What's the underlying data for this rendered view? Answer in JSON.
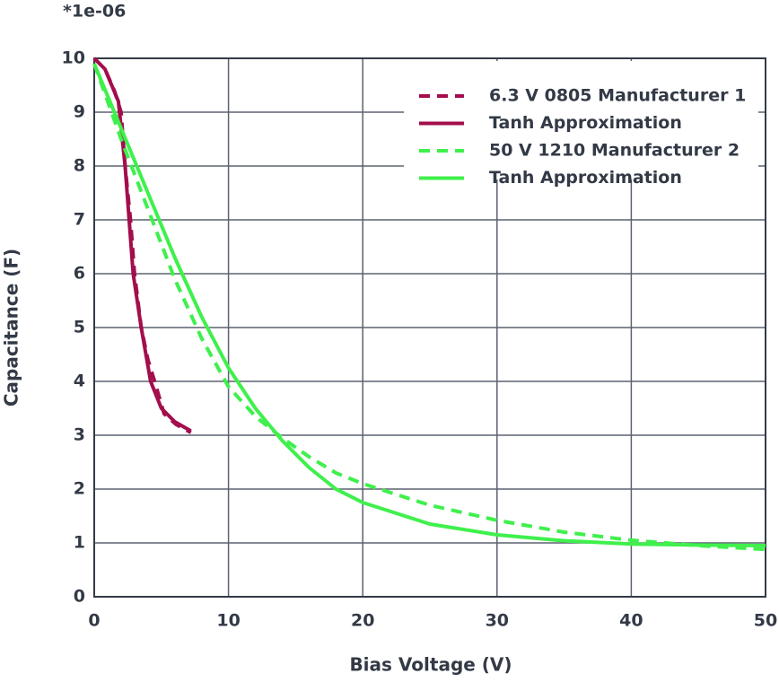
{
  "chart_data": {
    "type": "line",
    "annotation": "*1e-06",
    "xlabel": "Bias Voltage (V)",
    "ylabel": "Capacitance (F)",
    "xlim": [
      0,
      50
    ],
    "ylim": [
      0,
      10
    ],
    "xticks": [
      0,
      10,
      20,
      30,
      40,
      50
    ],
    "yticks": [
      0,
      1,
      2,
      3,
      4,
      5,
      6,
      7,
      8,
      9,
      10
    ],
    "grid": true,
    "legend": "upper right",
    "series": [
      {
        "name": "6.3 V 0805 Manufacturer 1",
        "color": "#a30e4c",
        "dashed": true,
        "x": [
          0,
          0.8,
          1.5,
          2.0,
          2.3,
          2.7,
          3.0,
          3.5,
          4.0,
          4.5,
          5.2,
          6.1,
          7.2
        ],
        "values": [
          10,
          9.8,
          9.4,
          9.0,
          8.0,
          7.0,
          6.0,
          5.0,
          4.4,
          4.0,
          3.4,
          3.2,
          3.05
        ]
      },
      {
        "name": "Tanh Approximation",
        "color": "#a30e4c",
        "dashed": false,
        "x": [
          0,
          0.8,
          1.8,
          2.3,
          2.6,
          2.9,
          3.5,
          4.2,
          5.0,
          6.0,
          7.2
        ],
        "values": [
          10,
          9.8,
          9.2,
          8.0,
          7.0,
          6.0,
          5.0,
          4.0,
          3.5,
          3.25,
          3.08
        ]
      },
      {
        "name": "50 V 1210 Manufacturer 2",
        "color": "#3ff04c",
        "dashed": true,
        "x": [
          0,
          2,
          4,
          6,
          8,
          10,
          12,
          14,
          16,
          18,
          20,
          25,
          30,
          35,
          40,
          45,
          50
        ],
        "values": [
          9.9,
          8.5,
          7.2,
          5.9,
          4.8,
          3.9,
          3.35,
          2.95,
          2.6,
          2.3,
          2.1,
          1.7,
          1.42,
          1.2,
          1.05,
          0.95,
          0.88
        ]
      },
      {
        "name": "Tanh Approximation",
        "color": "#3ff04c",
        "dashed": false,
        "x": [
          0,
          2,
          4,
          6,
          8,
          10,
          12,
          14,
          16,
          18,
          20,
          25,
          30,
          35,
          40,
          45,
          50
        ],
        "values": [
          9.9,
          8.7,
          7.5,
          6.3,
          5.2,
          4.25,
          3.5,
          2.9,
          2.4,
          2.0,
          1.75,
          1.35,
          1.15,
          1.04,
          0.98,
          0.96,
          0.95
        ]
      }
    ]
  }
}
